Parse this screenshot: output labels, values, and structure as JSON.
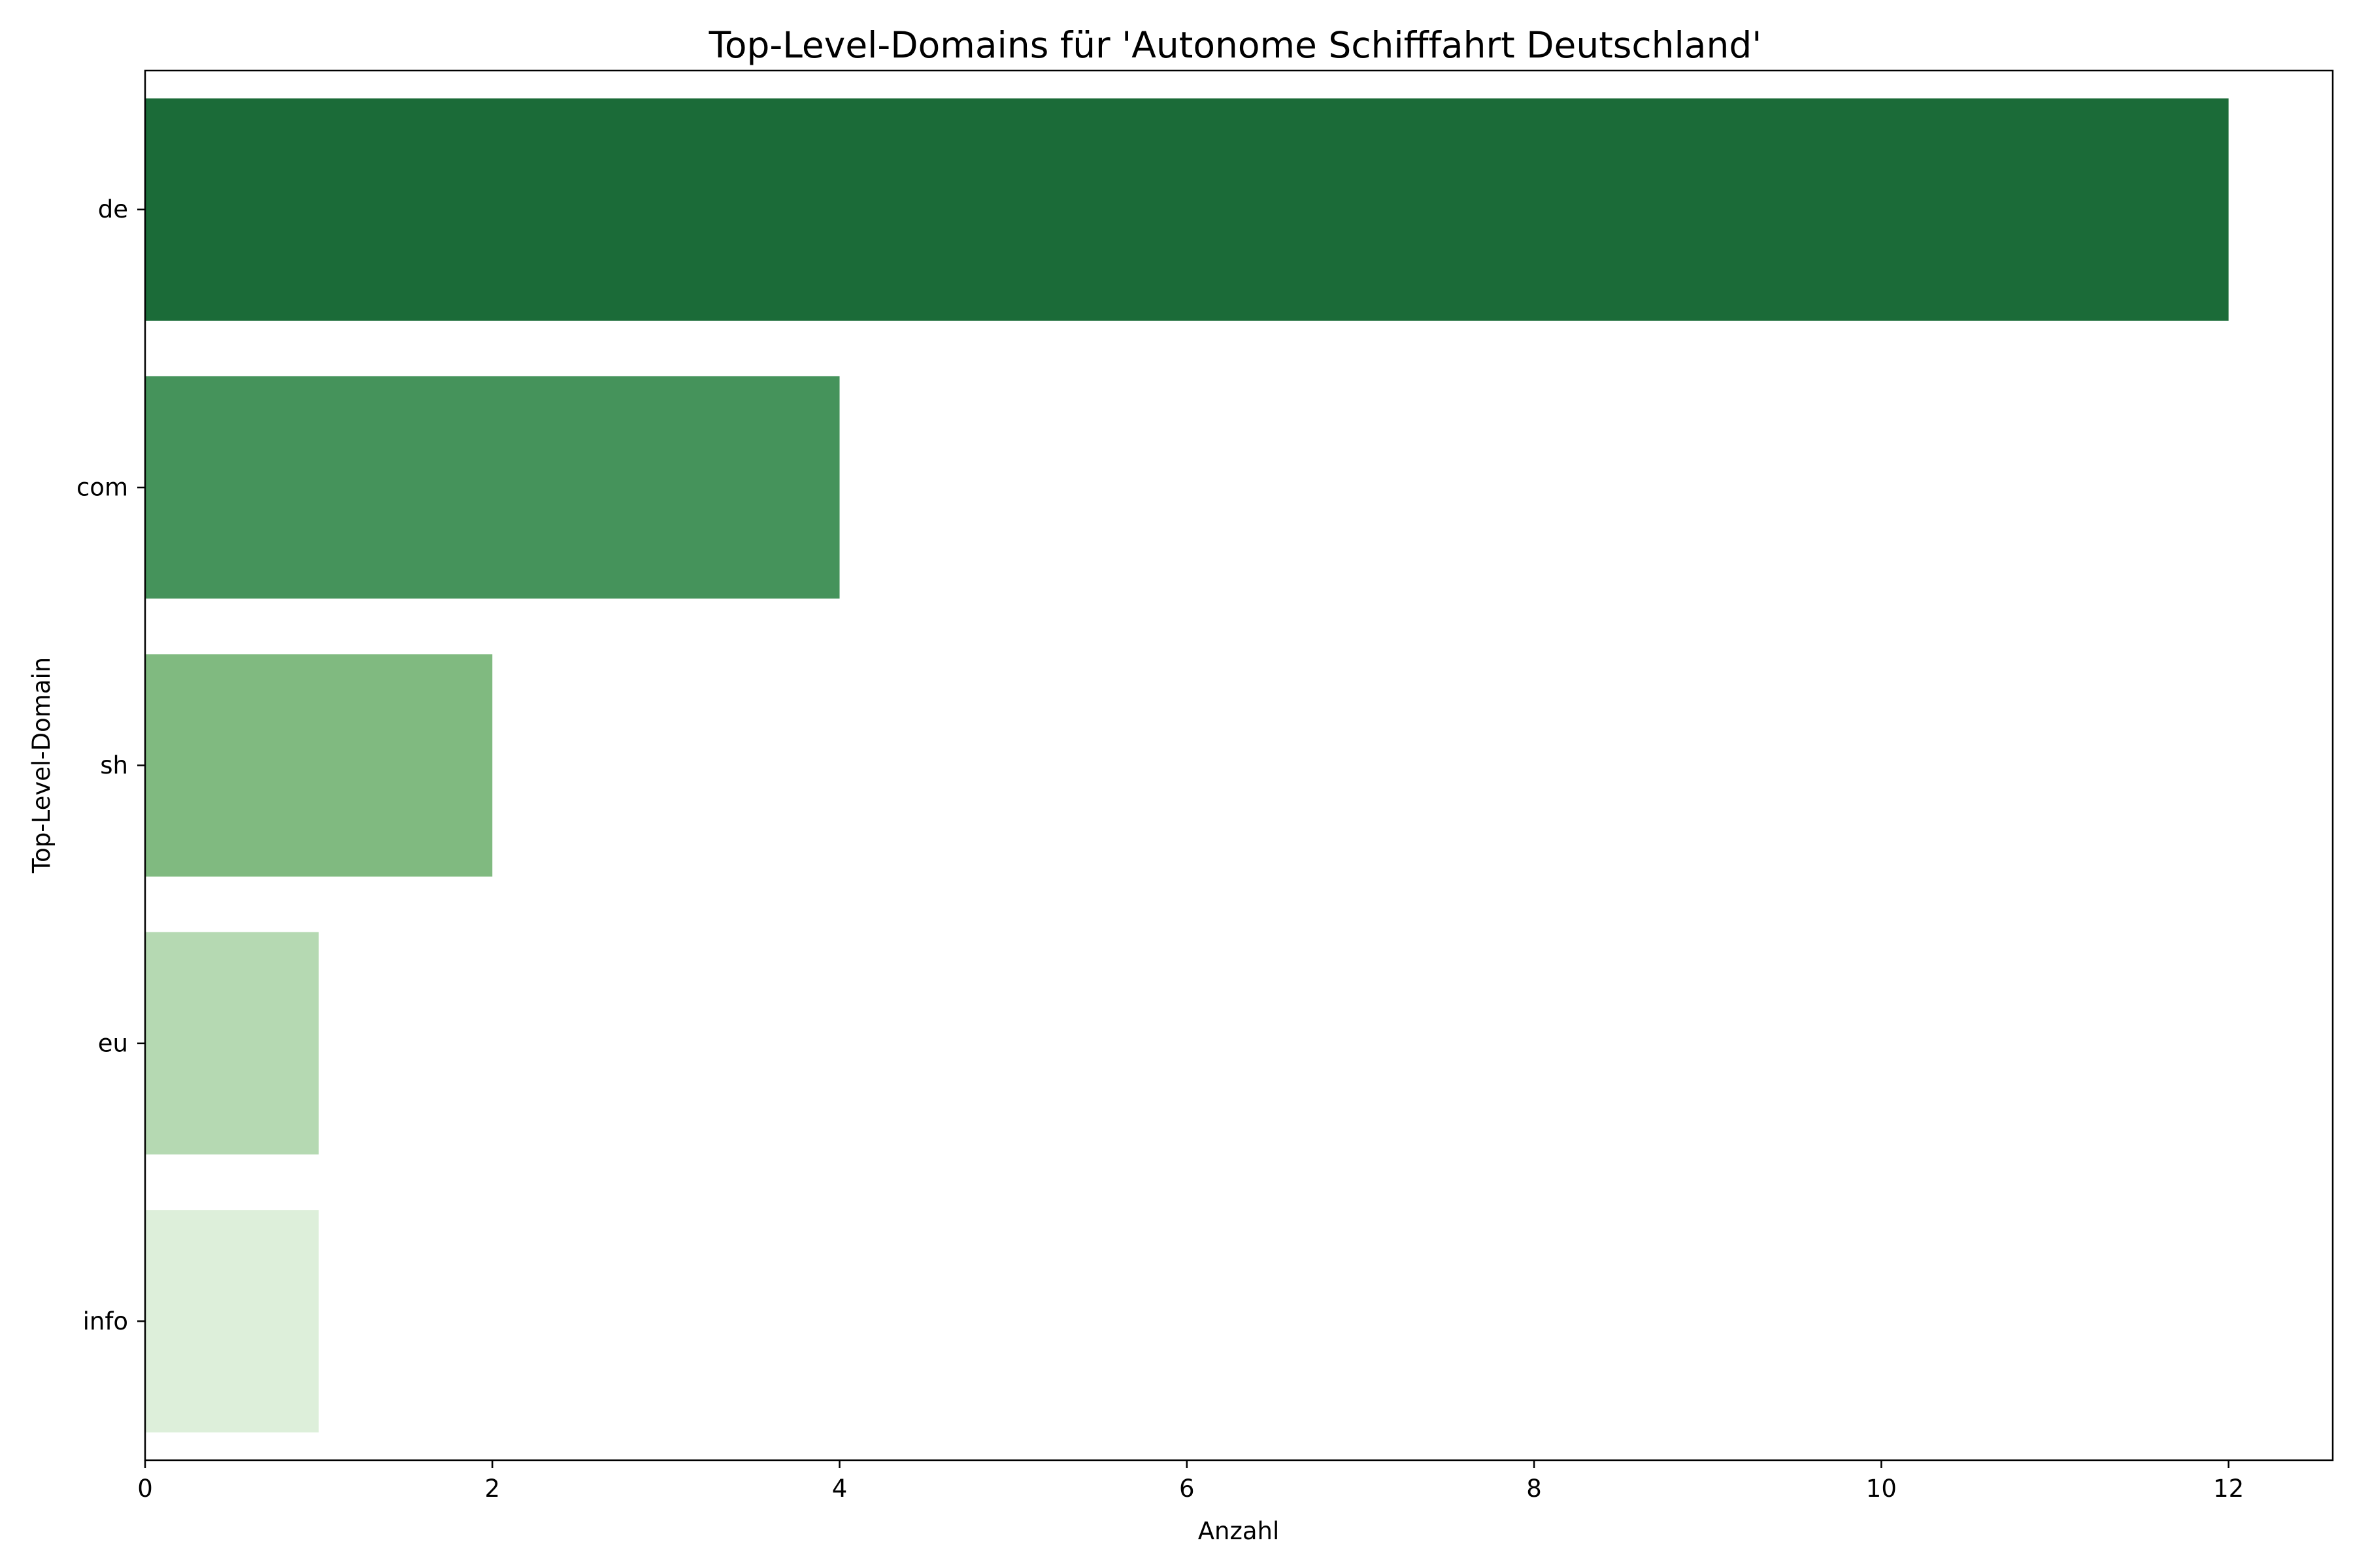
{
  "chart_data": {
    "type": "bar",
    "orientation": "horizontal",
    "title": "Top-Level-Domains für 'Autonome Schifffahrt Deutschland'",
    "xlabel": "Anzahl",
    "ylabel": "Top-Level-Domain",
    "categories": [
      "de",
      "com",
      "sh",
      "eu",
      "info"
    ],
    "values": [
      12,
      4,
      2,
      1,
      1
    ],
    "colors": [
      "#1b6b38",
      "#45935b",
      "#80ba80",
      "#b5d9b2",
      "#ddefda"
    ],
    "xlim": [
      0,
      12.6
    ],
    "xticks": [
      0,
      2,
      4,
      6,
      8,
      10,
      12
    ],
    "grid": false,
    "legend": "none"
  }
}
